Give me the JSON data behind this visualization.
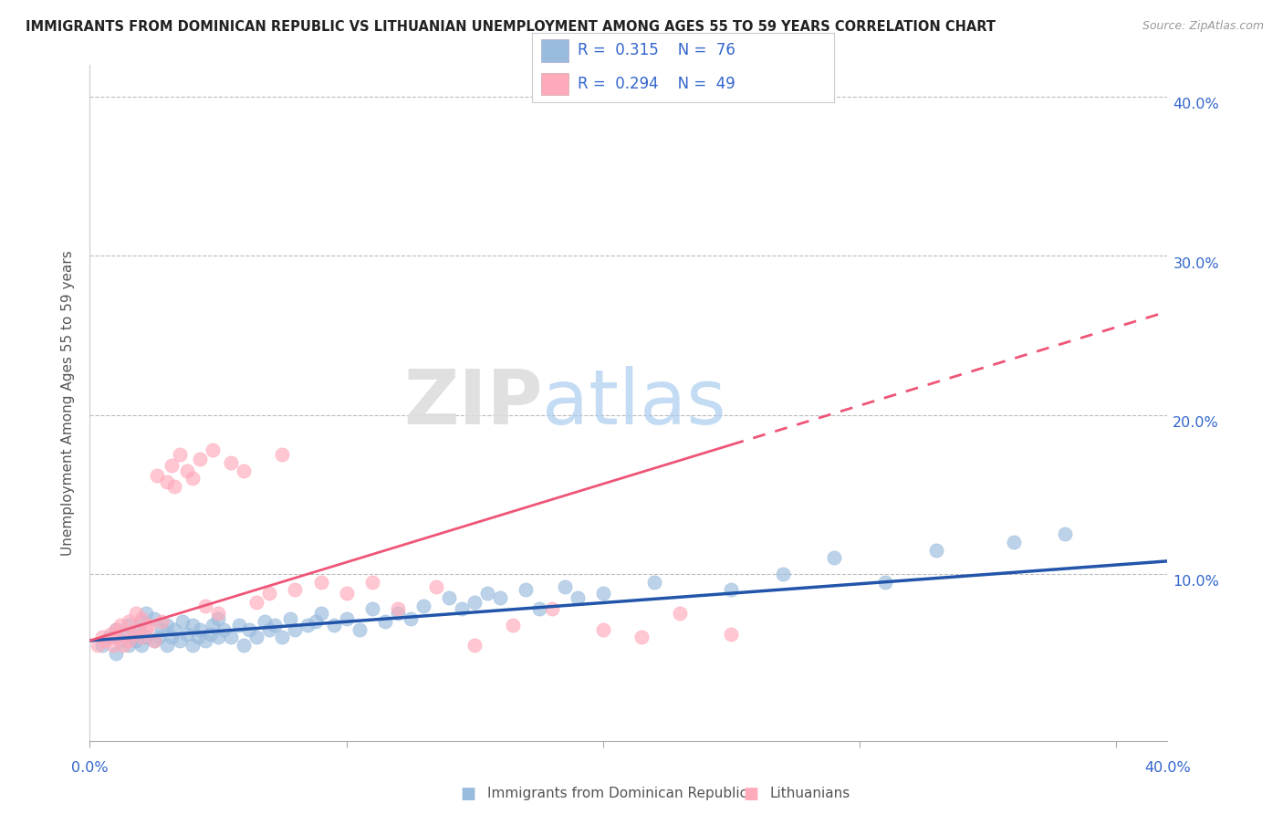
{
  "title": "IMMIGRANTS FROM DOMINICAN REPUBLIC VS LITHUANIAN UNEMPLOYMENT AMONG AGES 55 TO 59 YEARS CORRELATION CHART",
  "source": "Source: ZipAtlas.com",
  "ylabel": "Unemployment Among Ages 55 to 59 years",
  "xlim": [
    0.0,
    0.42
  ],
  "ylim": [
    -0.005,
    0.42
  ],
  "watermark_zip": "ZIP",
  "watermark_atlas": "atlas",
  "legend_R1": "0.315",
  "legend_N1": "76",
  "legend_R2": "0.294",
  "legend_N2": "49",
  "blue_color": "#99BBDD",
  "pink_color": "#FFAABB",
  "blue_line_color": "#2255AA",
  "pink_line_color": "#EE5577",
  "text_color": "#3366CC",
  "title_color": "#222222",
  "grid_color": "#BBBBBB",
  "background_color": "#FFFFFF",
  "blue_scatter_x": [
    0.005,
    0.008,
    0.01,
    0.01,
    0.012,
    0.013,
    0.015,
    0.015,
    0.017,
    0.018,
    0.019,
    0.02,
    0.02,
    0.022,
    0.022,
    0.025,
    0.025,
    0.027,
    0.028,
    0.03,
    0.03,
    0.032,
    0.033,
    0.035,
    0.036,
    0.038,
    0.04,
    0.04,
    0.042,
    0.043,
    0.045,
    0.047,
    0.048,
    0.05,
    0.05,
    0.052,
    0.055,
    0.058,
    0.06,
    0.062,
    0.065,
    0.068,
    0.07,
    0.072,
    0.075,
    0.078,
    0.08,
    0.085,
    0.088,
    0.09,
    0.095,
    0.1,
    0.105,
    0.11,
    0.115,
    0.12,
    0.125,
    0.13,
    0.14,
    0.145,
    0.15,
    0.155,
    0.16,
    0.17,
    0.175,
    0.185,
    0.19,
    0.2,
    0.22,
    0.25,
    0.27,
    0.29,
    0.31,
    0.33,
    0.36,
    0.38
  ],
  "blue_scatter_y": [
    0.055,
    0.06,
    0.05,
    0.065,
    0.058,
    0.062,
    0.055,
    0.068,
    0.06,
    0.058,
    0.065,
    0.055,
    0.07,
    0.06,
    0.075,
    0.058,
    0.072,
    0.06,
    0.065,
    0.055,
    0.068,
    0.06,
    0.065,
    0.058,
    0.07,
    0.062,
    0.055,
    0.068,
    0.06,
    0.065,
    0.058,
    0.062,
    0.068,
    0.06,
    0.072,
    0.065,
    0.06,
    0.068,
    0.055,
    0.065,
    0.06,
    0.07,
    0.065,
    0.068,
    0.06,
    0.072,
    0.065,
    0.068,
    0.07,
    0.075,
    0.068,
    0.072,
    0.065,
    0.078,
    0.07,
    0.075,
    0.072,
    0.08,
    0.085,
    0.078,
    0.082,
    0.088,
    0.085,
    0.09,
    0.078,
    0.092,
    0.085,
    0.088,
    0.095,
    0.09,
    0.1,
    0.11,
    0.095,
    0.115,
    0.12,
    0.125
  ],
  "pink_scatter_x": [
    0.003,
    0.005,
    0.006,
    0.008,
    0.009,
    0.01,
    0.01,
    0.012,
    0.013,
    0.015,
    0.015,
    0.016,
    0.018,
    0.018,
    0.02,
    0.02,
    0.022,
    0.023,
    0.025,
    0.026,
    0.028,
    0.03,
    0.032,
    0.033,
    0.035,
    0.038,
    0.04,
    0.043,
    0.045,
    0.048,
    0.05,
    0.055,
    0.06,
    0.065,
    0.07,
    0.075,
    0.08,
    0.09,
    0.1,
    0.11,
    0.12,
    0.135,
    0.15,
    0.165,
    0.18,
    0.2,
    0.215,
    0.23,
    0.25
  ],
  "pink_scatter_y": [
    0.055,
    0.06,
    0.058,
    0.062,
    0.055,
    0.065,
    0.06,
    0.068,
    0.055,
    0.058,
    0.07,
    0.062,
    0.065,
    0.075,
    0.06,
    0.072,
    0.065,
    0.068,
    0.058,
    0.162,
    0.07,
    0.158,
    0.168,
    0.155,
    0.175,
    0.165,
    0.16,
    0.172,
    0.08,
    0.178,
    0.075,
    0.17,
    0.165,
    0.082,
    0.088,
    0.175,
    0.09,
    0.095,
    0.088,
    0.095,
    0.078,
    0.092,
    0.055,
    0.068,
    0.078,
    0.065,
    0.06,
    0.075,
    0.062
  ],
  "blue_trend_x": [
    0.0,
    0.42
  ],
  "blue_trend_y": [
    0.058,
    0.108
  ],
  "pink_trend_x": [
    0.0,
    0.42
  ],
  "pink_trend_y": [
    0.058,
    0.265
  ],
  "legend_label1": "Immigrants from Dominican Republic",
  "legend_label2": "Lithuanians",
  "ytick_vals": [
    0.1,
    0.2,
    0.3,
    0.4
  ],
  "ytick_labels": [
    "10.0%",
    "20.0%",
    "30.0%",
    "40.0%"
  ],
  "xtick_vals": [
    0.0,
    0.1,
    0.2,
    0.3,
    0.4
  ],
  "xtick_labels_show": [
    "0.0%",
    "",
    "",
    "",
    "40.0%"
  ]
}
